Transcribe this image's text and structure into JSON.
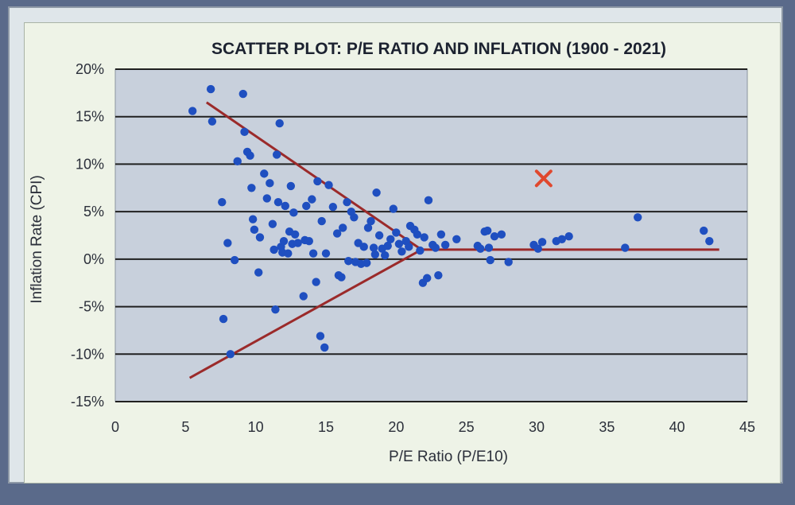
{
  "chart_data": {
    "type": "scatter",
    "title": "SCATTER PLOT: P/E RATIO AND INFLATION (1900 - 2021)",
    "xlabel": "P/E Ratio (P/E10)",
    "ylabel": "Inflation Rate (CPI)",
    "xlim": [
      0,
      45
    ],
    "ylim": [
      -15,
      20
    ],
    "x_ticks": [
      "0",
      "5",
      "10",
      "15",
      "20",
      "25",
      "30",
      "35",
      "40",
      "45"
    ],
    "y_ticks": [
      "20%",
      "15%",
      "10%",
      "5%",
      "0%",
      "-5%",
      "-10%",
      "-15%"
    ],
    "grid": "horizontal",
    "colors": {
      "points": "#1f4fc0",
      "trend_lines": "#9b2a2a",
      "highlight": "#e0482e",
      "plot_area": "#c8d0dc"
    },
    "series": [
      {
        "values": [
          [
            5.5,
            15.6
          ],
          [
            6.8,
            17.9
          ],
          [
            6.9,
            14.5
          ],
          [
            7.6,
            6.0
          ],
          [
            7.7,
            -6.3
          ],
          [
            8.0,
            1.7
          ],
          [
            8.2,
            -10.0
          ],
          [
            8.5,
            -0.1
          ],
          [
            8.7,
            10.3
          ],
          [
            9.1,
            17.4
          ],
          [
            9.2,
            13.4
          ],
          [
            9.4,
            11.3
          ],
          [
            9.6,
            10.9
          ],
          [
            9.7,
            7.5
          ],
          [
            9.8,
            4.2
          ],
          [
            9.9,
            3.1
          ],
          [
            10.2,
            -1.4
          ],
          [
            10.3,
            2.3
          ],
          [
            10.6,
            9.0
          ],
          [
            10.8,
            6.4
          ],
          [
            11.0,
            8.0
          ],
          [
            11.2,
            3.7
          ],
          [
            11.3,
            1.0
          ],
          [
            11.4,
            -5.3
          ],
          [
            11.5,
            11.0
          ],
          [
            11.6,
            6.0
          ],
          [
            11.7,
            14.3
          ],
          [
            11.8,
            1.3
          ],
          [
            11.9,
            0.7
          ],
          [
            12.0,
            1.9
          ],
          [
            12.1,
            5.6
          ],
          [
            12.3,
            0.6
          ],
          [
            12.4,
            2.9
          ],
          [
            12.5,
            7.7
          ],
          [
            12.6,
            1.6
          ],
          [
            12.7,
            4.9
          ],
          [
            12.8,
            2.6
          ],
          [
            13.0,
            1.7
          ],
          [
            13.4,
            -3.9
          ],
          [
            13.5,
            2.0
          ],
          [
            13.6,
            5.6
          ],
          [
            13.8,
            1.9
          ],
          [
            14.0,
            6.3
          ],
          [
            14.1,
            0.6
          ],
          [
            14.3,
            -2.4
          ],
          [
            14.4,
            8.2
          ],
          [
            14.6,
            -8.1
          ],
          [
            14.7,
            4.0
          ],
          [
            14.9,
            -9.3
          ],
          [
            15.0,
            0.6
          ],
          [
            15.2,
            7.8
          ],
          [
            15.5,
            5.5
          ],
          [
            15.8,
            2.7
          ],
          [
            15.9,
            -1.7
          ],
          [
            16.1,
            -1.9
          ],
          [
            16.2,
            3.3
          ],
          [
            16.5,
            6.0
          ],
          [
            16.6,
            -0.2
          ],
          [
            16.8,
            5.0
          ],
          [
            17.0,
            4.4
          ],
          [
            17.1,
            -0.3
          ],
          [
            17.3,
            1.7
          ],
          [
            17.5,
            -0.5
          ],
          [
            17.7,
            1.3
          ],
          [
            17.9,
            -0.4
          ],
          [
            18.0,
            3.3
          ],
          [
            18.2,
            4.0
          ],
          [
            18.4,
            1.2
          ],
          [
            18.5,
            0.5
          ],
          [
            18.6,
            7.0
          ],
          [
            18.8,
            2.5
          ],
          [
            19.0,
            1.1
          ],
          [
            19.2,
            0.4
          ],
          [
            19.4,
            1.4
          ],
          [
            19.6,
            2.1
          ],
          [
            19.8,
            5.3
          ],
          [
            20.0,
            2.8
          ],
          [
            20.2,
            1.6
          ],
          [
            20.4,
            0.8
          ],
          [
            20.7,
            1.9
          ],
          [
            20.9,
            1.3
          ],
          [
            21.0,
            3.5
          ],
          [
            21.3,
            3.1
          ],
          [
            21.5,
            2.6
          ],
          [
            21.7,
            0.9
          ],
          [
            21.9,
            -2.5
          ],
          [
            22.0,
            2.3
          ],
          [
            22.2,
            -2.0
          ],
          [
            22.3,
            6.2
          ],
          [
            22.6,
            1.5
          ],
          [
            22.8,
            1.2
          ],
          [
            23.0,
            -1.7
          ],
          [
            23.2,
            2.6
          ],
          [
            23.5,
            1.5
          ],
          [
            24.3,
            2.1
          ],
          [
            25.8,
            1.4
          ],
          [
            26.0,
            1.1
          ],
          [
            26.3,
            2.9
          ],
          [
            26.5,
            3.0
          ],
          [
            26.6,
            1.2
          ],
          [
            26.7,
            -0.1
          ],
          [
            27.0,
            2.4
          ],
          [
            27.5,
            2.6
          ],
          [
            28.0,
            -0.3
          ],
          [
            29.8,
            1.5
          ],
          [
            30.1,
            1.1
          ],
          [
            30.4,
            1.8
          ],
          [
            31.4,
            1.9
          ],
          [
            31.8,
            2.1
          ],
          [
            32.3,
            2.4
          ],
          [
            36.3,
            1.2
          ],
          [
            37.2,
            4.4
          ],
          [
            41.9,
            3.0
          ],
          [
            42.3,
            1.9
          ]
        ]
      }
    ],
    "trend_lines": [
      {
        "x": [
          6.5,
          21.8
        ],
        "y": [
          16.5,
          1.0
        ]
      },
      {
        "x": [
          5.3,
          21.8
        ],
        "y": [
          -12.5,
          1.0
        ]
      },
      {
        "x": [
          21.8,
          43.0
        ],
        "y": [
          1.0,
          1.0
        ]
      }
    ],
    "highlight_point": {
      "x": 30.5,
      "y": 8.5,
      "symbol": "x"
    }
  }
}
